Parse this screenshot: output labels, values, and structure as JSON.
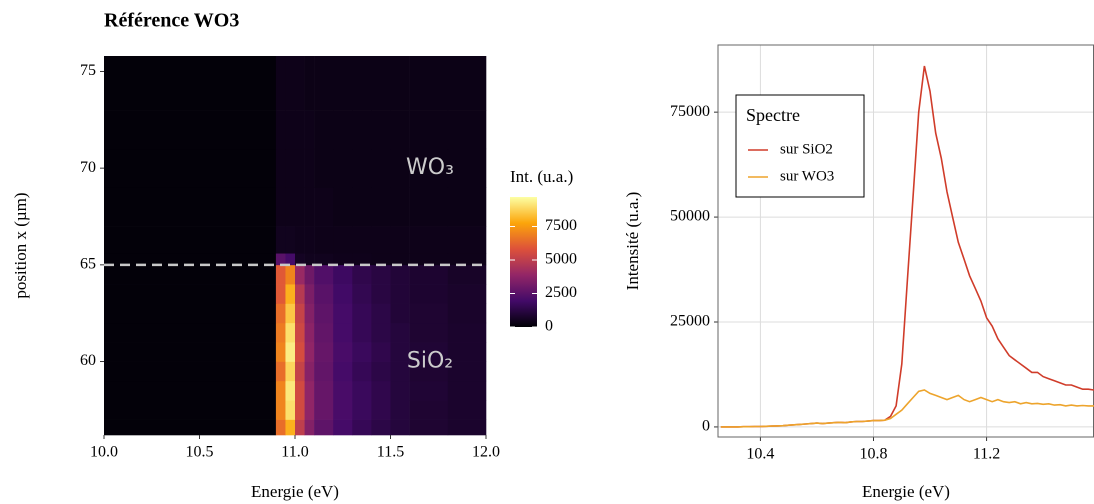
{
  "chart_data": [
    {
      "type": "heatmap",
      "title": "Référence WO3",
      "xlabel": "Energie (eV)",
      "ylabel": "position x (µm)",
      "xlim": [
        10,
        12
      ],
      "xticks": [
        {
          "value": 10,
          "label": "10.0"
        },
        {
          "value": 10.5,
          "label": "10.5"
        },
        {
          "value": 11,
          "label": "11.0"
        },
        {
          "value": 11.5,
          "label": "11.5"
        },
        {
          "value": 12,
          "label": "12.0"
        }
      ],
      "ylim": [
        56.2,
        75.8
      ],
      "yticks": [
        60,
        65,
        70,
        75
      ],
      "xbins": [
        10,
        10.9,
        10.95,
        11,
        11.05,
        11.1,
        11.2,
        11.3,
        11.4,
        11.5,
        11.6,
        11.8,
        12
      ],
      "ybins": [
        56.2,
        57,
        58,
        59,
        60,
        61,
        62,
        63,
        64,
        65,
        65.6,
        67,
        69,
        71,
        73,
        75.8
      ],
      "z": [
        [
          100,
          6500,
          8000,
          5000,
          3500,
          2600,
          2000,
          1600,
          1300,
          1100,
          900,
          800
        ],
        [
          100,
          7000,
          9000,
          5500,
          3800,
          2800,
          2100,
          1700,
          1400,
          1100,
          900,
          800
        ],
        [
          100,
          7000,
          9200,
          5500,
          3800,
          2800,
          2100,
          1700,
          1400,
          1100,
          950,
          800
        ],
        [
          100,
          6500,
          8800,
          5200,
          3600,
          2700,
          2000,
          1600,
          1300,
          1100,
          900,
          800
        ],
        [
          100,
          7000,
          9300,
          5600,
          3800,
          2800,
          2100,
          1700,
          1400,
          1100,
          950,
          800
        ],
        [
          100,
          6800,
          9000,
          5400,
          3700,
          2700,
          2000,
          1600,
          1300,
          1100,
          900,
          800
        ],
        [
          100,
          6500,
          8500,
          5200,
          3500,
          2600,
          2000,
          1600,
          1300,
          1000,
          900,
          750
        ],
        [
          100,
          6000,
          8000,
          4800,
          3300,
          2500,
          1900,
          1500,
          1200,
          1000,
          850,
          750
        ],
        [
          100,
          6000,
          7000,
          4000,
          3000,
          2300,
          1800,
          1400,
          1200,
          1000,
          850,
          700
        ],
        [
          100,
          2500,
          2000,
          600,
          500,
          500,
          450,
          450,
          400,
          400,
          400,
          400
        ],
        [
          100,
          500,
          500,
          450,
          450,
          400,
          400,
          400,
          400,
          400,
          400,
          400
        ],
        [
          100,
          400,
          400,
          400,
          400,
          400,
          350,
          350,
          350,
          350,
          350,
          350
        ],
        [
          100,
          400,
          400,
          400,
          400,
          350,
          350,
          350,
          350,
          350,
          350,
          350
        ],
        [
          100,
          400,
          400,
          400,
          400,
          350,
          350,
          350,
          350,
          350,
          350,
          350
        ],
        [
          100,
          400,
          400,
          400,
          350,
          350,
          350,
          350,
          350,
          350,
          350,
          350
        ]
      ],
      "colorscale": [
        "#000004",
        "#420a68",
        "#932667",
        "#dd513a",
        "#fca50a",
        "#fcffa4"
      ],
      "colorbar": {
        "label": "Int. (u.a.)",
        "lim": [
          0,
          9700
        ],
        "ticks": [
          0,
          2500,
          5000,
          7500
        ]
      },
      "hline": 65,
      "annotations": [
        "WO₃",
        "SiO₂"
      ]
    },
    {
      "type": "line",
      "xlabel": "Energie (eV)",
      "ylabel": "Intensité (u.a.)",
      "xlim": [
        10.25,
        11.58
      ],
      "xticks": [
        10.4,
        10.8,
        11.2
      ],
      "ylim": [
        -2400,
        91000
      ],
      "yticks": [
        0,
        25000,
        50000,
        75000
      ],
      "grid": true,
      "legend_title": "Spectre",
      "legend": "upper left",
      "x": [
        10.26,
        10.28,
        10.3,
        10.32,
        10.34,
        10.36,
        10.38,
        10.4,
        10.42,
        10.44,
        10.46,
        10.48,
        10.5,
        10.52,
        10.54,
        10.56,
        10.58,
        10.6,
        10.62,
        10.64,
        10.66,
        10.68,
        10.7,
        10.72,
        10.74,
        10.76,
        10.78,
        10.8,
        10.82,
        10.84,
        10.86,
        10.88,
        10.9,
        10.92,
        10.94,
        10.96,
        10.98,
        11.0,
        11.02,
        11.04,
        11.06,
        11.08,
        11.1,
        11.12,
        11.14,
        11.16,
        11.18,
        11.2,
        11.22,
        11.24,
        11.26,
        11.28,
        11.3,
        11.32,
        11.34,
        11.36,
        11.38,
        11.4,
        11.42,
        11.44,
        11.46,
        11.48,
        11.5,
        11.52,
        11.54,
        11.56,
        11.58
      ],
      "series": [
        {
          "name": "sur SiO2",
          "color": "#d03c2a",
          "values": [
            0,
            0,
            0,
            0,
            50,
            50,
            100,
            100,
            150,
            200,
            250,
            300,
            400,
            500,
            600,
            700,
            800,
            900,
            800,
            900,
            1000,
            1100,
            1000,
            1200,
            1300,
            1300,
            1400,
            1500,
            1500,
            1600,
            2500,
            5000,
            15000,
            35000,
            55000,
            75000,
            86000,
            80000,
            70000,
            64000,
            56000,
            50000,
            44000,
            40000,
            36000,
            33000,
            30000,
            26000,
            24000,
            21000,
            19000,
            17000,
            16000,
            15000,
            14000,
            13000,
            13000,
            12000,
            11500,
            11000,
            10500,
            10000,
            10000,
            9500,
            9000,
            9000,
            8800
          ]
        },
        {
          "name": "sur WO3",
          "color": "#eda42c",
          "values": [
            0,
            0,
            0,
            0,
            50,
            50,
            100,
            100,
            150,
            200,
            250,
            300,
            400,
            500,
            600,
            700,
            800,
            900,
            800,
            900,
            1000,
            1100,
            1000,
            1200,
            1300,
            1300,
            1400,
            1500,
            1500,
            1600,
            2000,
            3000,
            4000,
            5500,
            7000,
            8500,
            8800,
            8000,
            7500,
            7000,
            6500,
            7000,
            7500,
            6500,
            6000,
            6500,
            7000,
            6500,
            6000,
            6500,
            6000,
            5800,
            6000,
            5500,
            5800,
            5500,
            5600,
            5400,
            5500,
            5200,
            5300,
            5000,
            5200,
            5000,
            5100,
            5000,
            5000
          ]
        }
      ]
    }
  ]
}
